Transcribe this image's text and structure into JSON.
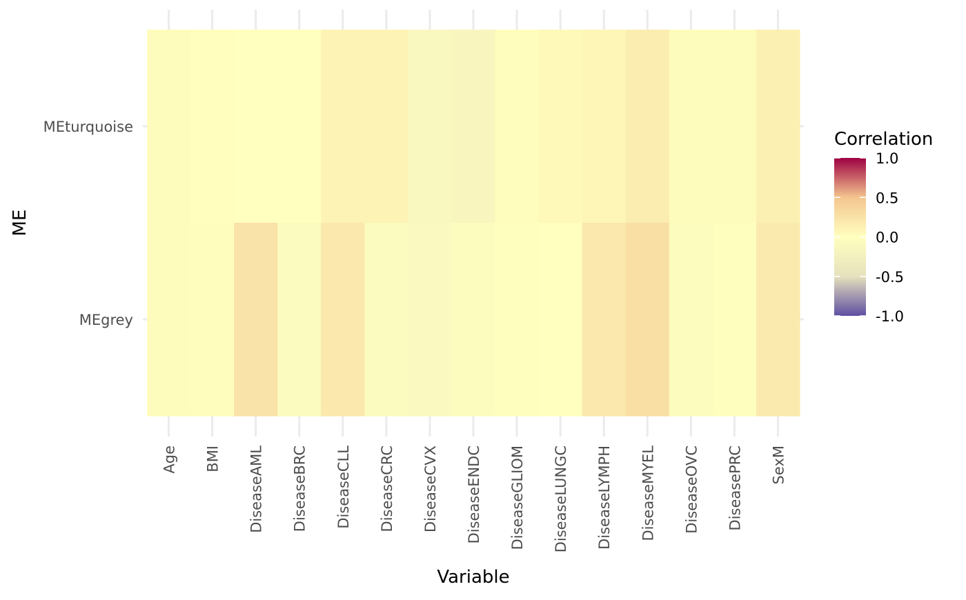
{
  "chart_data": {
    "type": "heatmap",
    "xlabel": "Variable",
    "ylabel": "ME",
    "x_categories": [
      "Age",
      "BMI",
      "DiseaseAML",
      "DiseaseBRC",
      "DiseaseCLL",
      "DiseaseCRC",
      "DiseaseCVX",
      "DiseaseENDC",
      "DiseaseGLIOM",
      "DiseaseLUNGC",
      "DiseaseLYMPH",
      "DiseaseMYEL",
      "DiseaseOVC",
      "DiseasePRC",
      "SexM"
    ],
    "y_categories": [
      "MEturquoise",
      "MEgrey"
    ],
    "values": [
      [
        0.03,
        0.01,
        0.0,
        0.0,
        0.1,
        0.1,
        -0.12,
        -0.15,
        0.02,
        0.06,
        0.08,
        0.16,
        0.03,
        0.03,
        0.14
      ],
      [
        0.03,
        0.02,
        0.24,
        -0.08,
        0.2,
        -0.08,
        -0.1,
        -0.05,
        -0.02,
        0.0,
        0.2,
        0.28,
        -0.05,
        -0.02,
        0.18
      ]
    ],
    "legend": {
      "title": "Correlation",
      "ticks": [
        "1.0",
        "0.5",
        "0.0",
        "-0.5",
        "-1.0"
      ],
      "range": [
        -1,
        1
      ],
      "position": "right",
      "colors": {
        "low": "#5e4fa2",
        "mid_low": "#e6e1bd",
        "mid": "#ffffbf",
        "mid_high": "#f4c58f",
        "high": "#9e0142"
      }
    },
    "grid": true
  }
}
